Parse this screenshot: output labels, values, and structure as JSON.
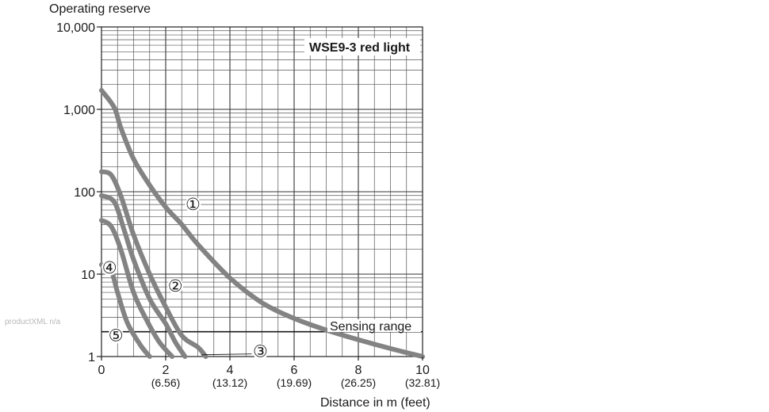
{
  "watermark": "productXML n/a",
  "chart_data": {
    "type": "line",
    "title": "WSE9-3 red light",
    "ylabel": "Operating reserve",
    "xlabel": "Distance in m (feet)",
    "y_scale": "log",
    "ylim": [
      1,
      10000
    ],
    "xlim": [
      0,
      10
    ],
    "y_ticks": [
      {
        "value": 1,
        "label": "1"
      },
      {
        "value": 10,
        "label": "10"
      },
      {
        "value": 100,
        "label": "100"
      },
      {
        "value": 1000,
        "label": "1,000"
      },
      {
        "value": 10000,
        "label": "10,000"
      }
    ],
    "x_ticks": [
      {
        "value": 0,
        "label": "0",
        "sublabel": ""
      },
      {
        "value": 2,
        "label": "2",
        "sublabel": "(6.56)"
      },
      {
        "value": 4,
        "label": "4",
        "sublabel": "(13.12)"
      },
      {
        "value": 6,
        "label": "6",
        "sublabel": "(19.69)"
      },
      {
        "value": 8,
        "label": "8",
        "sublabel": "(26.25)"
      },
      {
        "value": 10,
        "label": "10",
        "sublabel": "(32.81)"
      }
    ],
    "grid": true,
    "annotations": [
      {
        "text": "Sensing range",
        "y": 2
      }
    ],
    "series": [
      {
        "marker": "①",
        "label_at": [
          2.85,
          70
        ],
        "points": [
          [
            0,
            1700
          ],
          [
            0.4,
            1050
          ],
          [
            0.6,
            600
          ],
          [
            1,
            250
          ],
          [
            1.5,
            120
          ],
          [
            2,
            65
          ],
          [
            2.5,
            40
          ],
          [
            3,
            23
          ],
          [
            4,
            9
          ],
          [
            5,
            4.5
          ],
          [
            6,
            2.9
          ],
          [
            7,
            2.1
          ],
          [
            8,
            1.6
          ],
          [
            9,
            1.25
          ],
          [
            10,
            1.0
          ]
        ]
      },
      {
        "marker": "②",
        "label_at": [
          2.3,
          7.2
        ],
        "points": [
          [
            0,
            175
          ],
          [
            0.3,
            160
          ],
          [
            0.6,
            90
          ],
          [
            1,
            30
          ],
          [
            1.5,
            10
          ],
          [
            2,
            4
          ],
          [
            2.5,
            1.8
          ],
          [
            3,
            1.3
          ],
          [
            3.25,
            1.0
          ]
        ]
      },
      {
        "marker": "③",
        "label_at": [
          4.95,
          1.15
        ],
        "leader_to": [
          3.1,
          1.05
        ],
        "points": [
          [
            0,
            90
          ],
          [
            0.4,
            75
          ],
          [
            0.7,
            35
          ],
          [
            1,
            15
          ],
          [
            1.5,
            5
          ],
          [
            2,
            2.5
          ],
          [
            2.3,
            1.5
          ],
          [
            2.6,
            1.0
          ]
        ]
      },
      {
        "marker": "④",
        "label_at": [
          0.25,
          12
        ],
        "points": [
          [
            0,
            45
          ],
          [
            0.3,
            38
          ],
          [
            0.6,
            20
          ],
          [
            1,
            6
          ],
          [
            1.4,
            2.8
          ],
          [
            1.8,
            1.5
          ],
          [
            2.2,
            1.0
          ]
        ]
      },
      {
        "marker": "⑤",
        "label_at": [
          0.45,
          1.8
        ],
        "points": [
          [
            0,
            13
          ],
          [
            0.3,
            11
          ],
          [
            0.5,
            6
          ],
          [
            0.8,
            2.6
          ],
          [
            1.2,
            1.4
          ],
          [
            1.5,
            1.0
          ]
        ]
      }
    ]
  }
}
